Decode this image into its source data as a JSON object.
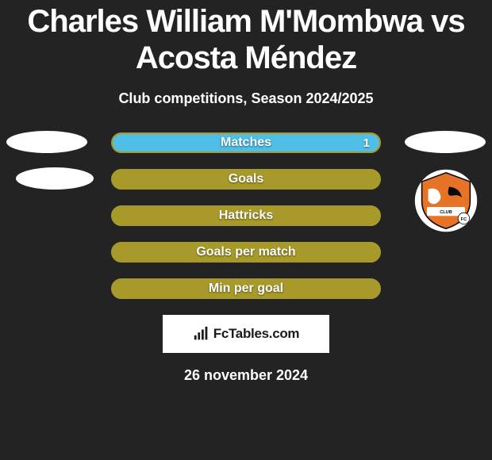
{
  "title": "Charles William M'Mombwa vs Acosta Méndez",
  "subtitle": "Club competitions, Season 2024/2025",
  "stats": [
    {
      "label": "Matches",
      "left_pct": 0,
      "right_pct": 100,
      "right_value": "1"
    },
    {
      "label": "Goals",
      "left_pct": 0,
      "right_pct": 0
    },
    {
      "label": "Hattricks",
      "left_pct": 0,
      "right_pct": 0
    },
    {
      "label": "Goals per match",
      "left_pct": 0,
      "right_pct": 0
    },
    {
      "label": "Min per goal",
      "left_pct": 0,
      "right_pct": 0
    }
  ],
  "colors": {
    "bar_border": "#a89a2a",
    "bar_fill": "#a89a2a",
    "right_fill": "#4fbfe8",
    "background": "#232323",
    "ellipse": "#ffffff"
  },
  "footer": {
    "site": "FcTables.com"
  },
  "date": "26 november 2024",
  "badge": {
    "bg": "#ffffff",
    "main": "#e67326",
    "accent": "#0a0a0a"
  }
}
